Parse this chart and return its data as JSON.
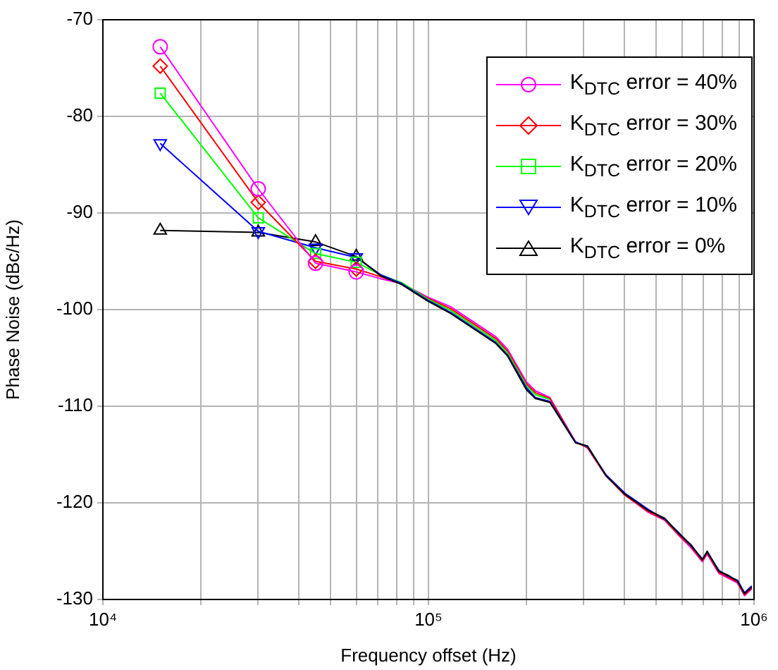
{
  "chart_data": {
    "type": "line",
    "xlabel": "Frequency offset (Hz)",
    "ylabel": "Phase Noise (dBc/Hz)",
    "log": "x",
    "grid": true,
    "legend": "top right",
    "xlim": [
      10000,
      1000000
    ],
    "xticks": [
      {
        "value": 10000,
        "label": "10⁴"
      },
      {
        "value": 20000,
        "label": null
      },
      {
        "value": 30000,
        "label": null
      },
      {
        "value": 40000,
        "label": null
      },
      {
        "value": 50000,
        "label": null
      },
      {
        "value": 60000,
        "label": null
      },
      {
        "value": 70000,
        "label": null
      },
      {
        "value": 80000,
        "label": null
      },
      {
        "value": 90000,
        "label": null
      },
      {
        "value": 100000,
        "label": "10⁵"
      },
      {
        "value": 200000,
        "label": null
      },
      {
        "value": 300000,
        "label": null
      },
      {
        "value": 400000,
        "label": null
      },
      {
        "value": 500000,
        "label": null
      },
      {
        "value": 600000,
        "label": null
      },
      {
        "value": 700000,
        "label": null
      },
      {
        "value": 800000,
        "label": null
      },
      {
        "value": 900000,
        "label": null
      },
      {
        "value": 1000000,
        "label": "10⁶"
      }
    ],
    "ylim": [
      -130,
      -70
    ],
    "yticks": [
      -130,
      -120,
      -110,
      -100,
      -90,
      -80,
      -70
    ],
    "series": [
      {
        "name": "K$_{DTC}$ error = 40%",
        "color": "#ff00ff",
        "marker": "circle",
        "x": [
          15000,
          30000,
          45000,
          60000
        ],
        "values": [
          -72.8,
          -87.5,
          -95.2,
          -96.1
        ]
      },
      {
        "name": "K$_{DTC}$ error = 30%",
        "color": "#ff0000",
        "marker": "diamond",
        "x": [
          15000,
          30000,
          45000,
          60000
        ],
        "values": [
          -74.8,
          -88.9,
          -95.0,
          -95.8
        ]
      },
      {
        "name": "K$_{DTC}$ error = 20%",
        "color": "#00ff00",
        "marker": "square",
        "x": [
          15000,
          30000,
          45000,
          60000
        ],
        "values": [
          -77.6,
          -90.5,
          -94.2,
          -95.1
        ]
      },
      {
        "name": "K$_{DTC}$ error = 10%",
        "color": "#0000ff",
        "marker": "triangle_down",
        "x": [
          15000,
          30000,
          45000,
          60000
        ],
        "values": [
          -82.8,
          -91.9,
          -93.6,
          -94.6
        ]
      },
      {
        "name": "K$_{DTC}$ error = 0%",
        "color": "#000000",
        "marker": "triangle",
        "x": [
          15000,
          30000,
          45000,
          60000
        ],
        "values": [
          -91.8,
          -92.0,
          -93.0,
          -94.5
        ]
      },
      {
        "color": "#000000",
        "marker": "none",
        "x": [
          60000,
          71300,
          82700,
          99300,
          117000,
          161000,
          175000,
          200000,
          213000,
          236000,
          283000,
          308000,
          351000,
          401000,
          474000,
          532000,
          588000,
          639000,
          694000,
          718000,
          780000,
          834000,
          889000,
          935000,
          984000
        ],
        "values": [
          -94.5,
          -96.5,
          -97.4,
          -99.1,
          -100.4,
          -103.5,
          -104.8,
          -108.3,
          -109.2,
          -109.6,
          -113.8,
          -114.1,
          -117.2,
          -119.1,
          -120.8,
          -121.6,
          -123.2,
          -124.3,
          -125.9,
          -125.0,
          -127.1,
          -127.5,
          -128.1,
          -129.4,
          -128.7
        ]
      },
      {
        "color": "#0000ff",
        "marker": "none",
        "x": [
          60000,
          71300,
          82700,
          99300,
          117000,
          161000,
          175000,
          200000,
          213000,
          236000,
          283000,
          308000,
          351000,
          401000,
          474000,
          532000,
          588000,
          639000,
          694000,
          718000,
          780000,
          834000,
          889000,
          935000,
          984000
        ],
        "values": [
          -94.6,
          -96.4,
          -97.3,
          -99.0,
          -100.3,
          -103.4,
          -104.7,
          -108.1,
          -109.1,
          -109.5,
          -113.7,
          -114.2,
          -117.1,
          -119.0,
          -120.7,
          -121.7,
          -123.1,
          -124.4,
          -125.8,
          -125.1,
          -127.0,
          -127.6,
          -128.0,
          -129.3,
          -128.6
        ]
      },
      {
        "color": "#00ff00",
        "marker": "none",
        "x": [
          60000,
          71300,
          82700,
          99300,
          117000,
          161000,
          175000,
          200000,
          213000,
          236000
        ],
        "values": [
          -95.1,
          -96.4,
          -97.2,
          -98.9,
          -100.1,
          -103.2,
          -104.5,
          -107.9,
          -108.8,
          -109.3
        ]
      },
      {
        "color": "#ff0000",
        "marker": "none",
        "x": [
          60000,
          71300,
          82700,
          99300,
          117000,
          161000,
          175000,
          200000,
          213000,
          236000,
          283000,
          308000,
          351000,
          401000,
          474000,
          532000,
          588000,
          639000,
          694000,
          718000,
          780000,
          834000,
          889000,
          935000,
          984000
        ],
        "values": [
          -95.8,
          -96.6,
          -97.3,
          -98.8,
          -99.9,
          -103.0,
          -104.3,
          -107.7,
          -108.6,
          -109.2,
          -113.7,
          -114.3,
          -117.2,
          -119.2,
          -120.9,
          -121.8,
          -123.3,
          -124.5,
          -126.0,
          -125.2,
          -127.2,
          -127.7,
          -128.2,
          -129.5,
          -128.8
        ]
      },
      {
        "color": "#ff00ff",
        "marker": "none",
        "x": [
          60000,
          71300,
          82700,
          99300,
          117000,
          161000,
          175000,
          200000,
          213000,
          236000,
          283000,
          308000,
          351000,
          401000,
          474000,
          532000,
          588000,
          639000,
          694000,
          718000,
          780000,
          834000,
          889000,
          935000,
          984000
        ],
        "values": [
          -96.1,
          -96.8,
          -97.3,
          -98.7,
          -99.7,
          -102.8,
          -104.1,
          -107.5,
          -108.4,
          -109.1,
          -113.7,
          -114.3,
          -117.2,
          -119.2,
          -121.0,
          -121.8,
          -123.4,
          -124.6,
          -126.1,
          -125.3,
          -127.3,
          -127.8,
          -128.3,
          -129.6,
          -128.9
        ]
      }
    ]
  }
}
